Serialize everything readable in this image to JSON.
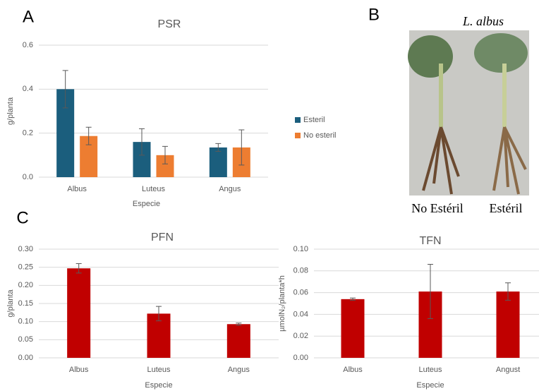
{
  "panel_labels": [
    "A",
    "B",
    "C"
  ],
  "photo": {
    "title": "L. albus",
    "labels": [
      "No Estéril",
      "Estéril"
    ]
  },
  "chart_data": [
    {
      "type": "bar",
      "title": "PSR",
      "x_label": "Especie",
      "y_label": "g/planta",
      "categories": [
        "Albus",
        "Luteus",
        "Angus"
      ],
      "series": [
        {
          "name": "Esteril",
          "color": "#1b5e7d",
          "values": [
            0.4,
            0.16,
            0.135
          ],
          "errors": [
            0.085,
            0.06,
            0.018
          ]
        },
        {
          "name": "No esteril",
          "color": "#ed7d31",
          "values": [
            0.187,
            0.1,
            0.135
          ],
          "errors": [
            0.04,
            0.04,
            0.08
          ]
        }
      ],
      "ylim": [
        0,
        0.6
      ],
      "yticks": [
        {
          "value": 0,
          "label": "0.0"
        },
        0.2,
        0.4,
        0.6
      ],
      "grid": true,
      "legend": "right"
    },
    {
      "type": "bar",
      "title": "PFN",
      "x_label": "Especie",
      "y_label": "g/planta",
      "categories": [
        "Albus",
        "Luteus",
        "Angus"
      ],
      "values": [
        0.247,
        0.122,
        0.093
      ],
      "errors": [
        0.013,
        0.02,
        0.003
      ],
      "color": "#c00000",
      "ylim": [
        0,
        0.3
      ],
      "yticks": [
        {
          "value": 0,
          "label": "0.00"
        },
        {
          "value": 0.05,
          "label": "0.05"
        },
        {
          "value": 0.1,
          "label": "0.10"
        },
        {
          "value": 0.15,
          "label": "0.15"
        },
        {
          "value": 0.2,
          "label": "0.20"
        },
        {
          "value": 0.25,
          "label": "0.25"
        },
        {
          "value": 0.3,
          "label": "0.30"
        }
      ],
      "grid": true
    },
    {
      "type": "bar",
      "title": "TFN",
      "x_label": "Especie",
      "y_label": "µmolN₂/planta*h",
      "categories": [
        "Albus",
        "Luteus",
        "Angust"
      ],
      "values": [
        0.054,
        0.061,
        0.061
      ],
      "errors": [
        0.001,
        0.025,
        0.008
      ],
      "color": "#c00000",
      "ylim": [
        0,
        0.1
      ],
      "yticks": [
        {
          "value": 0,
          "label": "0.00"
        },
        {
          "value": 0.02,
          "label": "0.02"
        },
        {
          "value": 0.04,
          "label": "0.04"
        },
        {
          "value": 0.06,
          "label": "0.06"
        },
        {
          "value": 0.08,
          "label": "0.08"
        },
        {
          "value": 0.1,
          "label": "0.10"
        }
      ],
      "grid": true
    }
  ]
}
